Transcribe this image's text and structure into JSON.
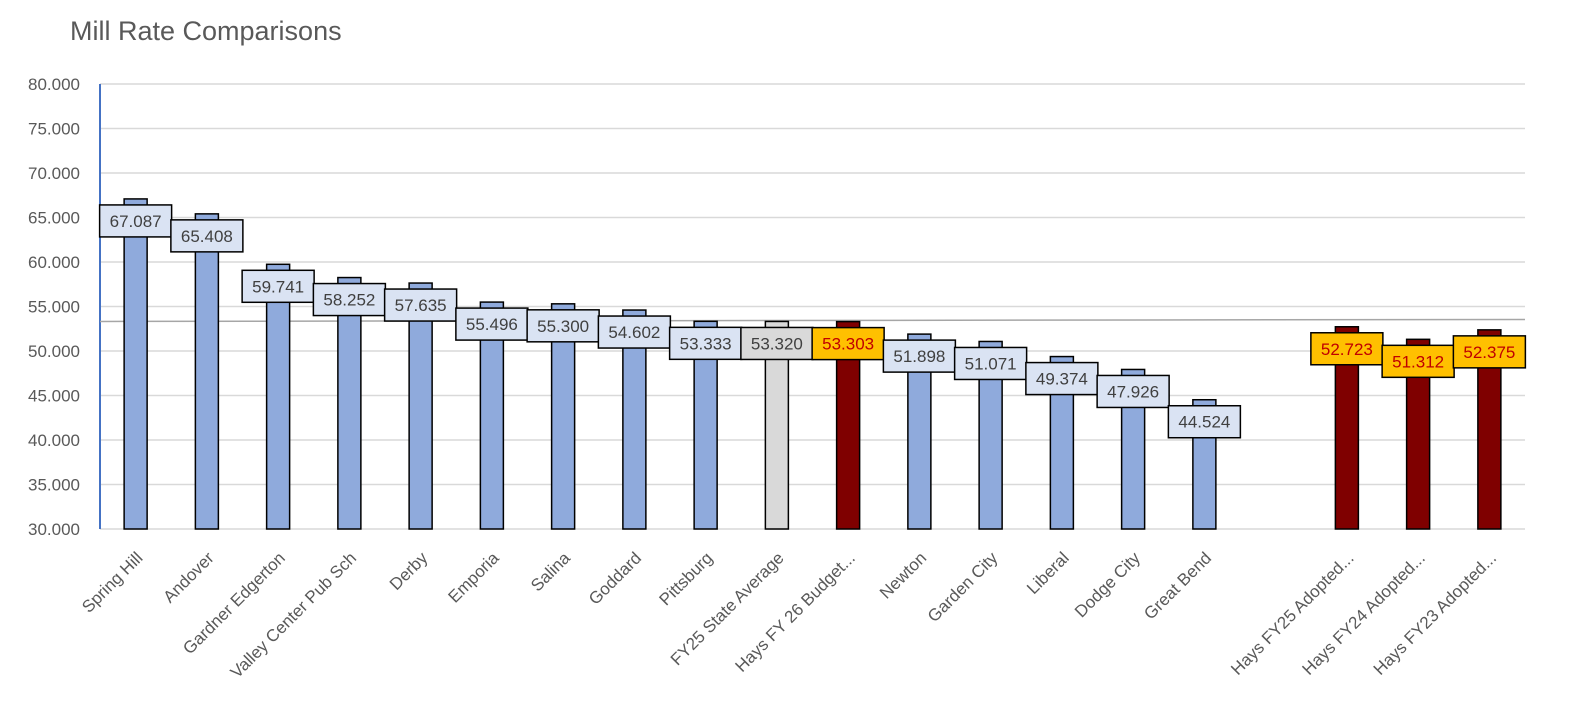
{
  "chart_data": {
    "type": "bar",
    "title": "Mill Rate Comparisons",
    "xlabel": "",
    "ylabel": "",
    "ylim": [
      30,
      80
    ],
    "ytick_step": 5,
    "ytick_labels": [
      "30.000",
      "35.000",
      "40.000",
      "45.000",
      "50.000",
      "55.000",
      "60.000",
      "65.000",
      "70.000",
      "75.000",
      "80.000"
    ],
    "grid": true,
    "reference_line": {
      "value": 53.32
    },
    "colors": {
      "city": "#8faadc",
      "state": "#d9d9d9",
      "hays": "#7f0000",
      "label_fill_default": "#dae3f3",
      "label_fill_state": "#d9d9d9",
      "label_fill_hays": "#ffc000",
      "label_text_default": "#404040",
      "label_text_hays": "#c00000",
      "axis": "#4472c4",
      "gridline": "#d9d9d9"
    },
    "categories": [
      {
        "label": "Spring Hill",
        "value": 67.087,
        "value_label": "67.087",
        "group": "city"
      },
      {
        "label": "Andover",
        "value": 65.408,
        "value_label": "65.408",
        "group": "city"
      },
      {
        "label": "Gardner Edgerton",
        "value": 59.741,
        "value_label": "59.741",
        "group": "city"
      },
      {
        "label": "Valley Center Pub Sch",
        "value": 58.252,
        "value_label": "58.252",
        "group": "city"
      },
      {
        "label": "Derby",
        "value": 57.635,
        "value_label": "57.635",
        "group": "city"
      },
      {
        "label": "Emporia",
        "value": 55.496,
        "value_label": "55.496",
        "group": "city"
      },
      {
        "label": "Salina",
        "value": 55.3,
        "value_label": "55.300",
        "group": "city"
      },
      {
        "label": "Goddard",
        "value": 54.602,
        "value_label": "54.602",
        "group": "city"
      },
      {
        "label": "Pittsburg",
        "value": 53.333,
        "value_label": "53.333",
        "group": "city"
      },
      {
        "label": "FY25 State Average",
        "value": 53.32,
        "value_label": "53.320",
        "group": "state"
      },
      {
        "label": "Hays FY 26 Budget...",
        "value": 53.303,
        "value_label": "53.303",
        "group": "hays"
      },
      {
        "label": "Newton",
        "value": 51.898,
        "value_label": "51.898",
        "group": "city"
      },
      {
        "label": "Garden City",
        "value": 51.071,
        "value_label": "51.071",
        "group": "city"
      },
      {
        "label": "Liberal",
        "value": 49.374,
        "value_label": "49.374",
        "group": "city"
      },
      {
        "label": "Dodge City",
        "value": 47.926,
        "value_label": "47.926",
        "group": "city"
      },
      {
        "label": "Great Bend",
        "value": 44.524,
        "value_label": "44.524",
        "group": "city"
      },
      {
        "label": "",
        "value": null,
        "value_label": "",
        "group": "gap"
      },
      {
        "label": "Hays FY25 Adopted...",
        "value": 52.723,
        "value_label": "52.723",
        "group": "hays"
      },
      {
        "label": "Hays FY24 Adopted...",
        "value": 51.312,
        "value_label": "51.312",
        "group": "hays"
      },
      {
        "label": "Hays FY23 Adopted...",
        "value": 52.375,
        "value_label": "52.375",
        "group": "hays"
      }
    ]
  }
}
